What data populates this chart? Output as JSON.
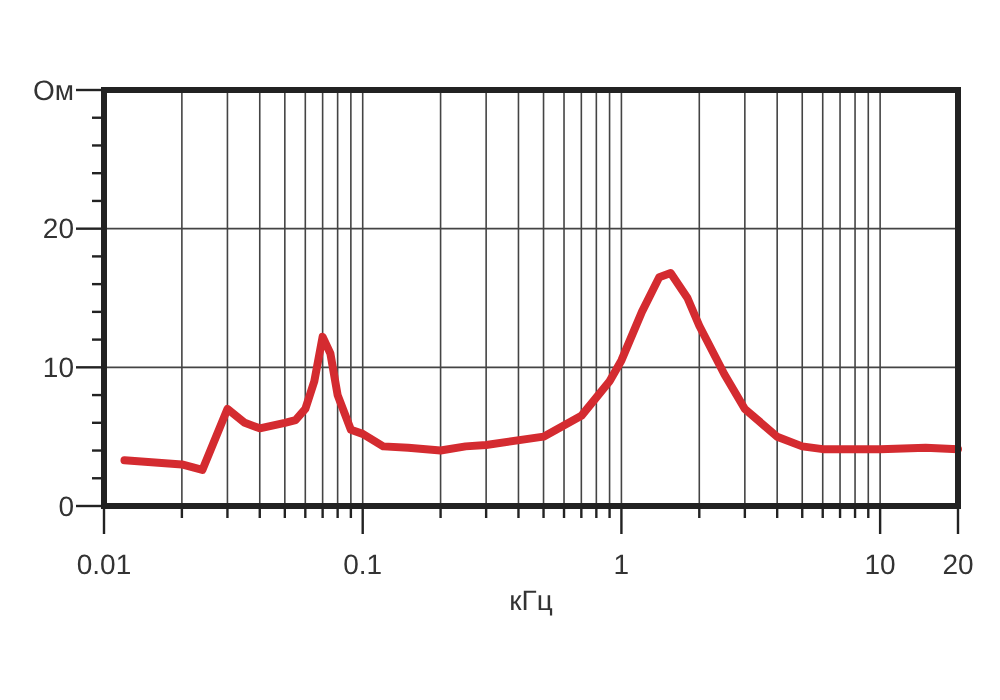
{
  "chart_data": {
    "type": "line",
    "xlabel": "кГц",
    "log": "x",
    "grid": true,
    "line_style": "solid",
    "marker": "none",
    "xlim": [
      0.01,
      20
    ],
    "xticks": [
      0.01,
      {
        "value": 0.02,
        "label": null
      },
      {
        "value": 0.03,
        "label": null
      },
      {
        "value": 0.04,
        "label": null
      },
      {
        "value": 0.05,
        "label": null
      },
      {
        "value": 0.06,
        "label": null
      },
      {
        "value": 0.07,
        "label": null
      },
      {
        "value": 0.08,
        "label": null
      },
      {
        "value": 0.09,
        "label": null
      },
      0.1,
      {
        "value": 0.2,
        "label": null
      },
      {
        "value": 0.3,
        "label": null
      },
      {
        "value": 0.4,
        "label": null
      },
      {
        "value": 0.5,
        "label": null
      },
      {
        "value": 0.6,
        "label": null
      },
      {
        "value": 0.7,
        "label": null
      },
      {
        "value": 0.8,
        "label": null
      },
      {
        "value": 0.9,
        "label": null
      },
      1,
      {
        "value": 2,
        "label": null
      },
      {
        "value": 3,
        "label": null
      },
      {
        "value": 4,
        "label": null
      },
      {
        "value": 5,
        "label": null
      },
      {
        "value": 6,
        "label": null
      },
      {
        "value": 7,
        "label": null
      },
      {
        "value": 8,
        "label": null
      },
      {
        "value": 9,
        "label": null
      },
      10,
      20
    ],
    "ylim": [
      0,
      30
    ],
    "yticks": [
      0,
      {
        "value": 2,
        "label": null
      },
      {
        "value": 4,
        "label": null
      },
      {
        "value": 6,
        "label": null
      },
      {
        "value": 8,
        "label": null
      },
      10,
      {
        "value": 12,
        "label": null
      },
      {
        "value": 14,
        "label": null
      },
      {
        "value": 16,
        "label": null
      },
      {
        "value": 18,
        "label": null
      },
      20,
      {
        "value": 22,
        "label": null
      },
      {
        "value": 24,
        "label": null
      },
      {
        "value": 26,
        "label": null
      },
      {
        "value": 28,
        "label": null
      },
      {
        "value": 30,
        "label": "Ом"
      }
    ],
    "x": [
      0.012,
      0.02,
      0.024,
      0.03,
      0.035,
      0.04,
      0.05,
      0.055,
      0.06,
      0.065,
      0.07,
      0.075,
      0.08,
      0.09,
      0.1,
      0.12,
      0.15,
      0.2,
      0.25,
      0.3,
      0.5,
      0.7,
      0.9,
      1.0,
      1.2,
      1.4,
      1.55,
      1.8,
      2.0,
      2.5,
      3,
      4,
      5,
      6,
      10,
      15,
      20
    ],
    "series": [
      {
        "color": "#d42b30",
        "values": [
          3.3,
          3.0,
          2.6,
          7,
          6,
          5.6,
          6,
          6.2,
          7,
          9,
          12.2,
          11,
          8,
          5.5,
          5.2,
          4.3,
          4.2,
          4.0,
          4.3,
          4.4,
          5,
          6.5,
          9,
          10.5,
          14,
          16.5,
          16.8,
          15,
          13,
          9.5,
          7,
          5,
          4.3,
          4.1,
          4.1,
          4.2,
          4.1
        ]
      }
    ]
  }
}
